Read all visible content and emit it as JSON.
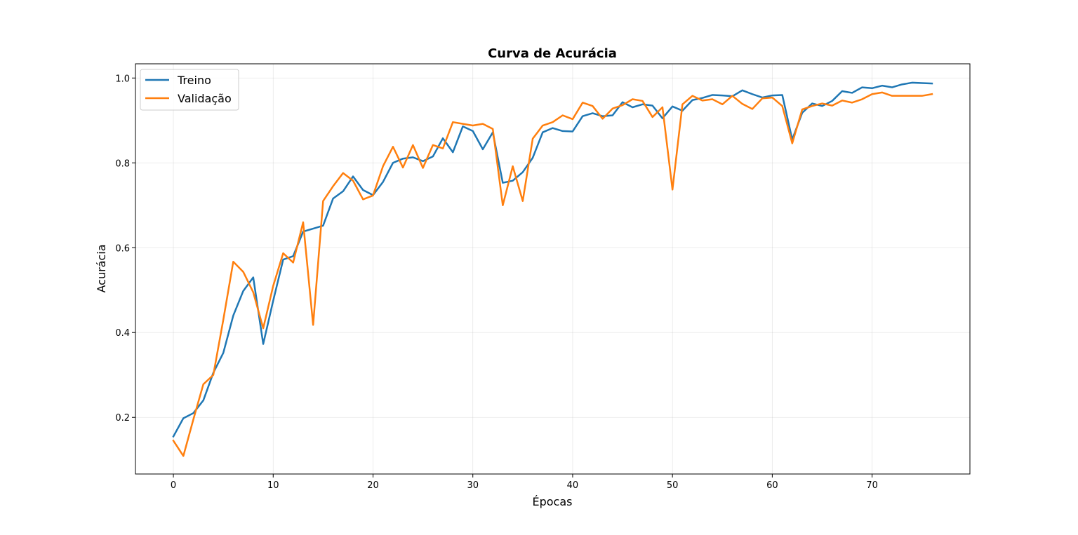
{
  "chart_data": {
    "type": "line",
    "title": "Curva de Acurácia",
    "xlabel": "Épocas",
    "ylabel": "Acurácia",
    "xlim": [
      -3.8,
      79.8
    ],
    "ylim": [
      0.0665,
      1.0335
    ],
    "xticks": [
      0,
      10,
      20,
      30,
      40,
      50,
      60,
      70
    ],
    "yticks": [
      0.2,
      0.4,
      0.6,
      0.8,
      1.0
    ],
    "grid": true,
    "legend_position": "upper-left",
    "x": [
      0,
      1,
      2,
      3,
      4,
      5,
      6,
      7,
      8,
      9,
      10,
      11,
      12,
      13,
      14,
      15,
      16,
      17,
      18,
      19,
      20,
      21,
      22,
      23,
      24,
      25,
      26,
      27,
      28,
      29,
      30,
      31,
      32,
      33,
      34,
      35,
      36,
      37,
      38,
      39,
      40,
      41,
      42,
      43,
      44,
      45,
      46,
      47,
      48,
      49,
      50,
      51,
      52,
      53,
      54,
      55,
      56,
      57,
      58,
      59,
      60,
      61,
      62,
      63,
      64,
      65,
      66,
      67,
      68,
      69,
      70,
      71,
      72,
      73,
      74,
      75,
      76
    ],
    "series": [
      {
        "name": "Treino",
        "color": "#1f77b4",
        "values": [
          0.155,
          0.198,
          0.21,
          0.24,
          0.305,
          0.352,
          0.44,
          0.498,
          0.53,
          0.373,
          0.475,
          0.572,
          0.58,
          0.638,
          0.645,
          0.652,
          0.716,
          0.733,
          0.768,
          0.736,
          0.724,
          0.755,
          0.8,
          0.81,
          0.813,
          0.804,
          0.815,
          0.858,
          0.825,
          0.886,
          0.875,
          0.832,
          0.872,
          0.753,
          0.758,
          0.778,
          0.812,
          0.872,
          0.882,
          0.875,
          0.874,
          0.91,
          0.917,
          0.91,
          0.912,
          0.943,
          0.931,
          0.938,
          0.935,
          0.905,
          0.933,
          0.923,
          0.948,
          0.953,
          0.96,
          0.959,
          0.957,
          0.971,
          0.962,
          0.954,
          0.959,
          0.96,
          0.855,
          0.918,
          0.94,
          0.934,
          0.946,
          0.969,
          0.965,
          0.978,
          0.976,
          0.982,
          0.978,
          0.985,
          0.989,
          0.988,
          0.987
        ]
      },
      {
        "name": "Validação",
        "color": "#ff7f0e",
        "values": [
          0.145,
          0.109,
          0.195,
          0.278,
          0.3,
          0.43,
          0.567,
          0.543,
          0.495,
          0.41,
          0.51,
          0.587,
          0.565,
          0.66,
          0.418,
          0.71,
          0.745,
          0.776,
          0.758,
          0.714,
          0.723,
          0.792,
          0.838,
          0.789,
          0.842,
          0.788,
          0.842,
          0.834,
          0.896,
          0.892,
          0.888,
          0.892,
          0.88,
          0.7,
          0.792,
          0.71,
          0.857,
          0.888,
          0.896,
          0.912,
          0.903,
          0.942,
          0.934,
          0.904,
          0.928,
          0.936,
          0.95,
          0.946,
          0.908,
          0.931,
          0.737,
          0.938,
          0.958,
          0.947,
          0.95,
          0.938,
          0.958,
          0.939,
          0.927,
          0.952,
          0.954,
          0.934,
          0.846,
          0.926,
          0.934,
          0.94,
          0.935,
          0.947,
          0.942,
          0.95,
          0.962,
          0.966,
          0.958,
          0.958,
          0.958,
          0.958,
          0.962
        ]
      }
    ]
  }
}
